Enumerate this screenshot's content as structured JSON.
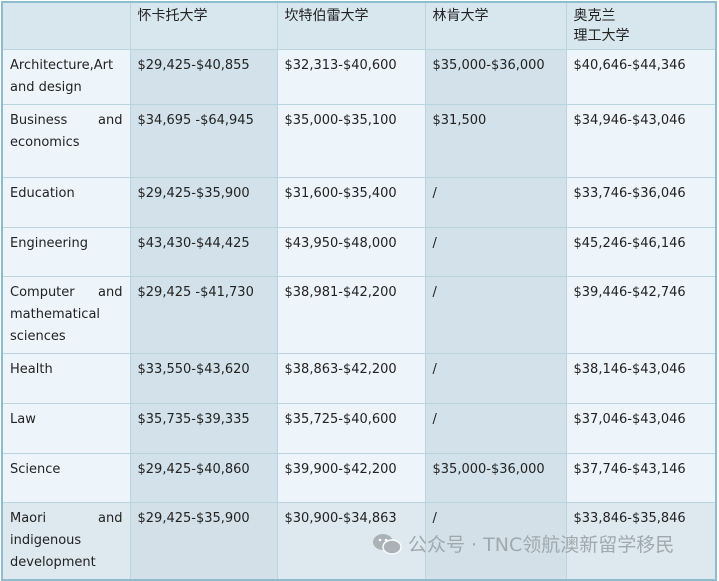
{
  "headers": [
    "",
    "怀卡托大学",
    "坎特伯雷大学",
    "林肯大学",
    "奥克兰\n理工大学"
  ],
  "rows": [
    [
      "Architecture,Art and design",
      "$29,425-$40,855",
      "$32,313-$40,600",
      "$35,000-$36,000",
      "$40,646-$44,346"
    ],
    [
      "Business and economics",
      "$34,695 -$64,945",
      "$35,000-$35,100",
      "$31,500",
      "$34,946-$43,046"
    ],
    [
      "Education",
      "$29,425-$35,900",
      "$31,600-$35,400",
      "/",
      "$33,746-$36,046"
    ],
    [
      "Engineering",
      "$43,430-$44,425",
      "$43,950-$48,000",
      "/",
      "$45,246-$46,146"
    ],
    [
      "Computer and mathematical sciences",
      "$29,425 -$41,730",
      "$38,981-$42,200",
      "/",
      "$39,446-$42,746"
    ],
    [
      "Health",
      "$33,550-$43,620",
      "$38,863-$42,200",
      "/",
      "$38,146-$43,046"
    ],
    [
      "Law",
      "$35,735-$39,335",
      "$35,725-$40,600",
      "/",
      "$37,046-$43,046"
    ],
    [
      "Science",
      "$29,425-$40,860",
      "$39,900-$42,200",
      "$35,000-$36,000",
      "$37,746-$43,146"
    ],
    [
      "Maori and indigenous development",
      "$29,425-$35,900",
      "$30,900-$34,863",
      "/",
      "$33,846-$35,846"
    ]
  ],
  "watermark": {
    "icon": "wechat-icon",
    "text": "公众号 · TNC领航澳新留学移民"
  }
}
